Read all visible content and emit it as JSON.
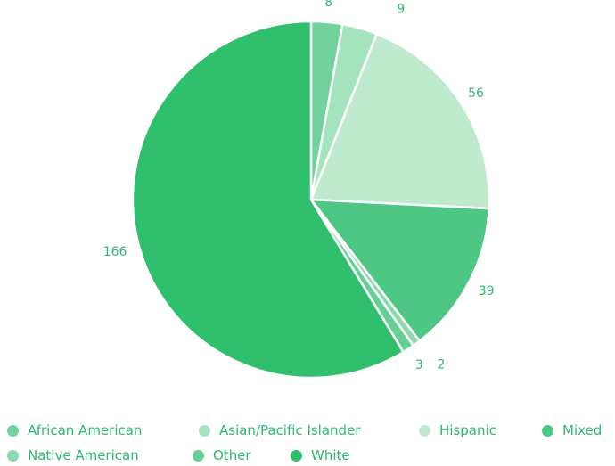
{
  "chart_data": {
    "type": "pie",
    "title": "",
    "categories": [
      "African American",
      "Asian/Pacific Islander",
      "Hispanic",
      "Mixed",
      "Native American",
      "Other",
      "White"
    ],
    "values": [
      8,
      9,
      56,
      39,
      2,
      3,
      166
    ],
    "data_labels": [
      "8",
      "9",
      "56",
      "39",
      "2",
      "3",
      "166"
    ],
    "colors": [
      "#72d29c",
      "#a3e4bd",
      "#bfeace",
      "#4ec784",
      "#8dd9ad",
      "#66cf95",
      "#2fbf6d"
    ],
    "label_color": "#2eb872",
    "start_angle_deg": 0,
    "direction": "clockwise",
    "legend_position": "bottom",
    "legend_rows": [
      [
        "African American",
        "Asian/Pacific Islander",
        "Hispanic",
        "Mixed"
      ],
      [
        "Native American",
        "Other",
        "White"
      ]
    ]
  }
}
